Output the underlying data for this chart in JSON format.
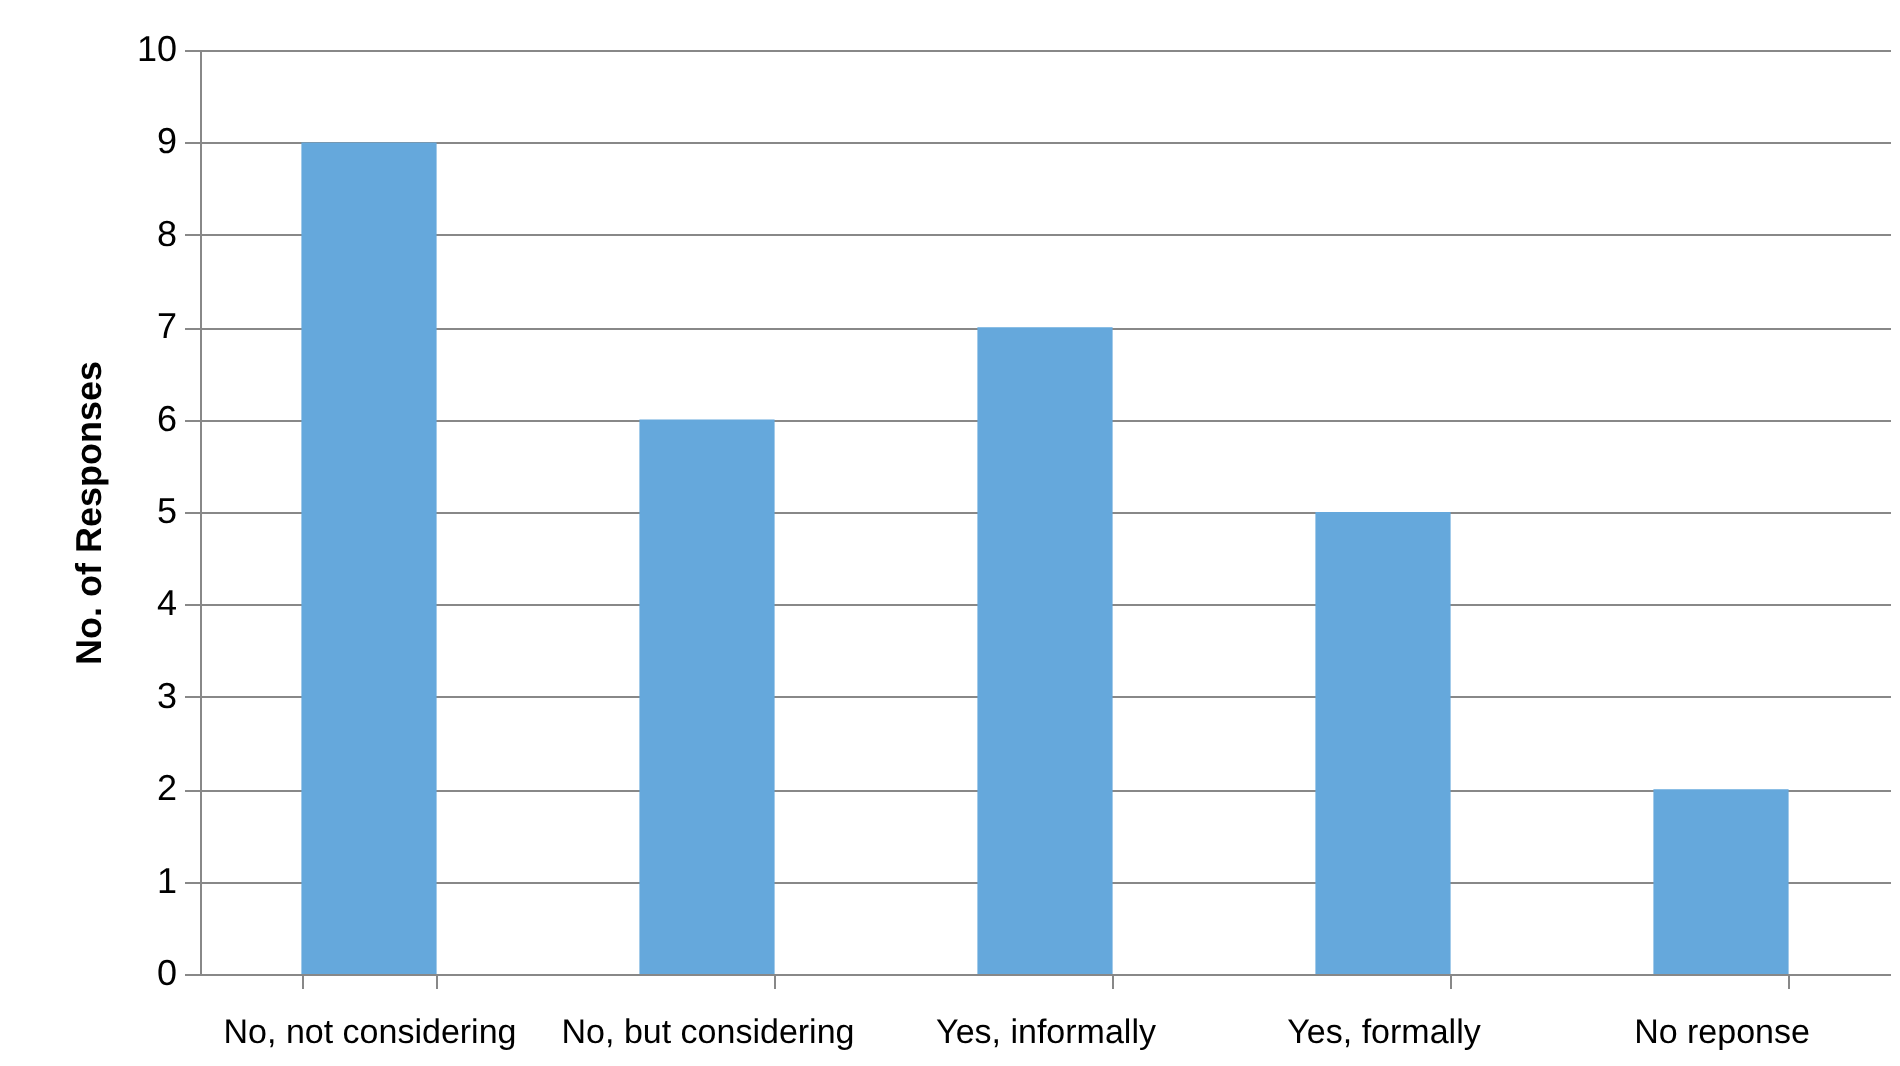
{
  "chart_data": {
    "type": "bar",
    "ylabel": "No. of Responses",
    "categories": [
      "No, not considering",
      "No, but considering",
      "Yes, informally",
      "Yes, formally",
      "No reponse"
    ],
    "values": [
      9,
      6,
      7,
      5,
      2
    ],
    "color": "#65a8dc",
    "ylim": [
      0,
      10
    ],
    "yticks": [
      0,
      1,
      2,
      3,
      4,
      5,
      6,
      7,
      8,
      9,
      10
    ],
    "grid": "y"
  }
}
